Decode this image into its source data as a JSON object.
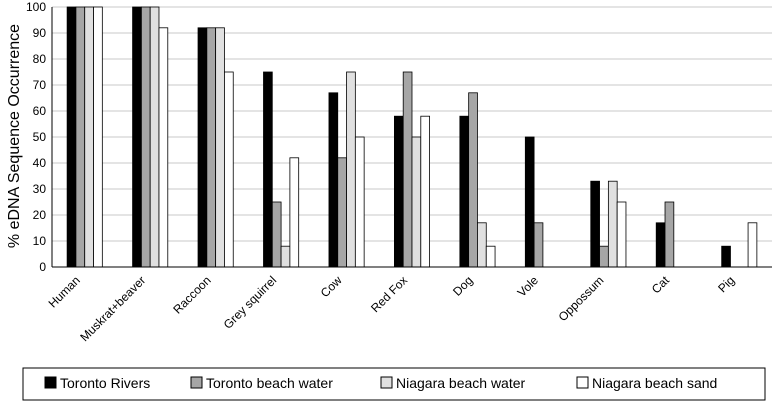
{
  "chart_data": {
    "type": "bar",
    "title": "",
    "xlabel": "",
    "ylabel": "% eDNA Sequence Occurrence",
    "ylim": [
      0,
      100
    ],
    "yticks": [
      "0",
      "10",
      "20",
      "30",
      "40",
      "50",
      "60",
      "70",
      "80",
      "90",
      "100"
    ],
    "grid": true,
    "legend_position": "bottom",
    "categories": [
      "Human",
      "Muskrat+beaver",
      "Raccoon",
      "Grey squirrel",
      "Cow",
      "Red Fox",
      "Dog",
      "Vole",
      "Oppossum",
      "Cat",
      "Pig"
    ],
    "series": [
      {
        "name": "Toronto Rivers",
        "color": "#000000",
        "values": [
          100,
          100,
          92,
          75,
          67,
          58,
          58,
          50,
          33,
          17,
          8
        ]
      },
      {
        "name": "Toronto beach water",
        "color": "#a6a6a6",
        "values": [
          100,
          100,
          92,
          25,
          42,
          75,
          67,
          17,
          8,
          25,
          0
        ]
      },
      {
        "name": "Niagara beach water",
        "color": "#e0e0e0",
        "values": [
          100,
          100,
          92,
          8,
          75,
          50,
          17,
          0,
          33,
          0,
          0
        ]
      },
      {
        "name": "Niagara beach sand",
        "color": "#ffffff",
        "values": [
          100,
          92,
          75,
          42,
          50,
          58,
          8,
          0,
          25,
          0,
          17
        ]
      }
    ]
  }
}
